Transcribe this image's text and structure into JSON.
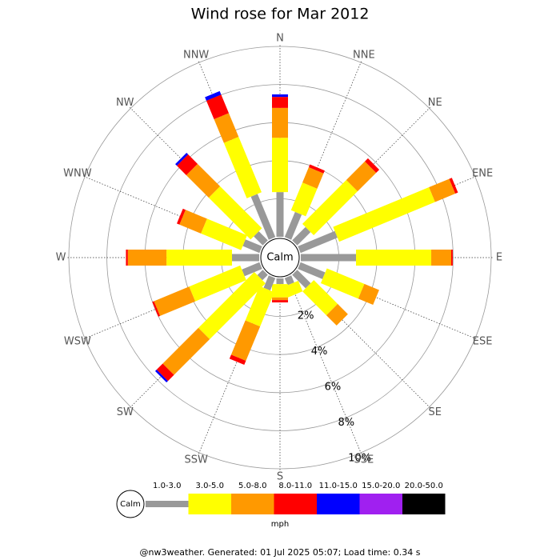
{
  "chart_data": {
    "type": "windrose",
    "title": "Wind rose for Mar 2012",
    "categories": [
      "N",
      "NNE",
      "NE",
      "ENE",
      "E",
      "ESE",
      "SE",
      "SSE",
      "S",
      "SSW",
      "SW",
      "WSW",
      "W",
      "WNW",
      "NW",
      "NNW"
    ],
    "series": [
      {
        "name": "1.0-3.0",
        "color": "#999999",
        "values": [
          2.35,
          1.43,
          0.99,
          2.1,
          2.9,
          1.4,
          1.0,
          0.4,
          0.3,
          0.7,
          0.4,
          1.0,
          1.43,
          0.95,
          0.67,
          2.45
        ]
      },
      {
        "name": "3.0-5.0",
        "color": "#ffff00",
        "values": [
          2.85,
          1.57,
          3.26,
          5.45,
          3.95,
          2.13,
          1.77,
          0.6,
          0.7,
          1.95,
          4.15,
          2.9,
          3.44,
          2.28,
          3.11,
          3.15
        ]
      },
      {
        "name": "5.0-8.0",
        "color": "#ff9900",
        "values": [
          1.57,
          0.87,
          1.38,
          1.15,
          1.05,
          0.84,
          0.76,
          0,
          0.14,
          1.95,
          2.65,
          2.0,
          2.03,
          1.22,
          1.67,
          1.35
        ]
      },
      {
        "name": "8.0-11.0",
        "color": "#ff0000",
        "values": [
          0.58,
          0.16,
          0.23,
          0.15,
          0.08,
          0,
          0,
          0,
          0.12,
          0.23,
          0.45,
          0.1,
          0.1,
          0.15,
          0.7,
          1.05
        ]
      },
      {
        "name": "11.0-15.0",
        "color": "#0000ff",
        "values": [
          0.13,
          0,
          0,
          0,
          0,
          0,
          0,
          0,
          0,
          0,
          0.11,
          0,
          0,
          0,
          0.12,
          0.2
        ]
      },
      {
        "name": "15.0-20.0",
        "color": "#a020f0",
        "values": [
          0,
          0,
          0,
          0,
          0,
          0,
          0,
          0,
          0,
          0,
          0,
          0,
          0,
          0,
          0,
          0
        ]
      },
      {
        "name": "20.0-50.0",
        "color": "#000000",
        "values": [
          0,
          0,
          0,
          0,
          0,
          0,
          0,
          0,
          0,
          0,
          0,
          0,
          0,
          0,
          0,
          0
        ]
      }
    ],
    "rlim": [
      0,
      10
    ],
    "rticks": [
      {
        "value": 2,
        "label": "2%"
      },
      {
        "value": 4,
        "label": "4%"
      },
      {
        "value": 6,
        "label": "6%"
      },
      {
        "value": 8,
        "label": "8%"
      },
      {
        "value": 10,
        "label": "10%"
      }
    ],
    "calm_label": "Calm",
    "legend_unit": "mph",
    "footer": "@nw3weather. Generated: 01 Jul 2025 05:07; Load time: 0.34 s"
  }
}
